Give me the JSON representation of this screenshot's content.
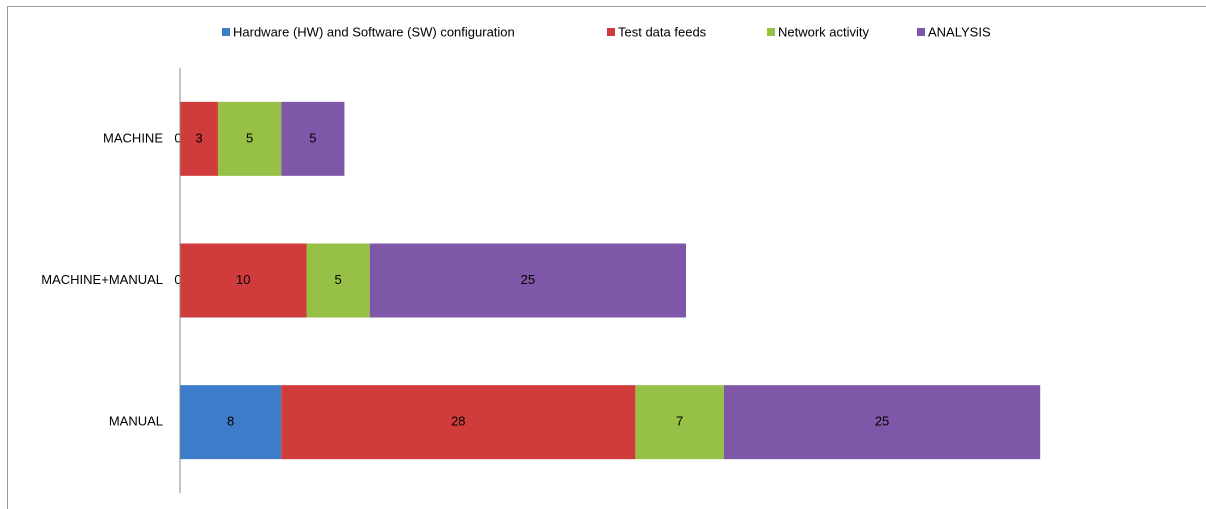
{
  "chart_data": {
    "type": "stacked-bar-horizontal",
    "categories": [
      "MACHINE",
      "MACHINE+MANUAL",
      "MANUAL"
    ],
    "series": [
      {
        "name": "Hardware (HW) and Software (SW) configuration",
        "color": "#3d7cc9",
        "values": [
          0,
          0,
          8
        ]
      },
      {
        "name": "Test data feeds",
        "color": "#d03c3c",
        "values": [
          3,
          10,
          28
        ]
      },
      {
        "name": "Network activity",
        "color": "#97c046",
        "values": [
          5,
          5,
          7
        ]
      },
      {
        "name": "ANALYSIS",
        "color": "#7f57a8",
        "values": [
          5,
          25,
          25
        ]
      }
    ],
    "xlim": [
      0,
      80
    ],
    "legend": "top",
    "data_labels": true
  }
}
